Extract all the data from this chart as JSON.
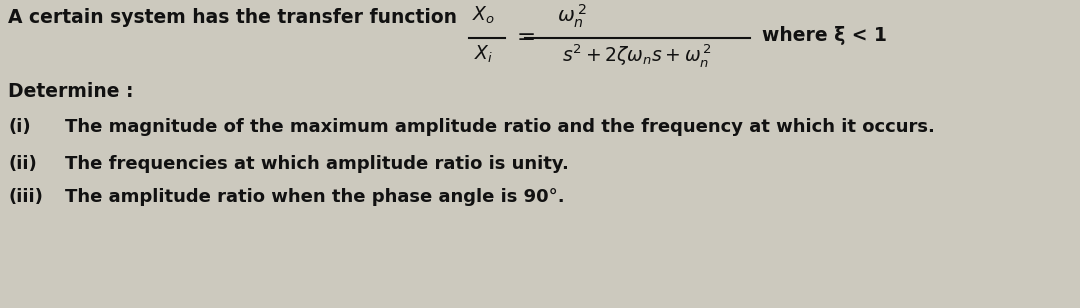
{
  "background_color": "#ccc9be",
  "text_color": "#111111",
  "title_line": "A certain system has the transfer function",
  "where_text": "where ξ < 1",
  "determine_label": "Determine :",
  "item_i": "The magnitude of the maximum amplitude ratio and the frequency at which it occurs.",
  "item_ii": "The frequencies at which amplitude ratio is unity.",
  "item_iii": "The amplitude ratio when the phase angle is 90°.",
  "label_i": "(i)",
  "label_ii": "(ii)",
  "label_iii": "(iii)",
  "font_size_main": 13.5,
  "font_size_items": 13.0,
  "fig_width": 10.8,
  "fig_height": 3.08,
  "dpi": 100
}
